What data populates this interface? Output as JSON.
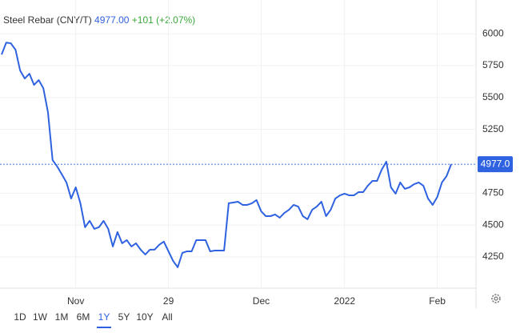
{
  "chart_data": {
    "type": "line",
    "title": "Steel Rebar (CNY/T)",
    "price": "4977.00",
    "change": "+101 (+2.07%)",
    "color": "#2f62e0",
    "price_line": {
      "value": 4977,
      "label": "4977.0"
    },
    "ylim": [
      4005,
      6265
    ],
    "yticks": [
      4250,
      4500,
      4750,
      5250,
      5500,
      5750,
      6000
    ],
    "grid": true,
    "categories": [
      null,
      null,
      null,
      null,
      null,
      null,
      null,
      null,
      null,
      null,
      null,
      null,
      null,
      null,
      null,
      null,
      "Nov",
      null,
      null,
      null,
      null,
      null,
      null,
      null,
      null,
      null,
      null,
      null,
      null,
      null,
      null,
      null,
      null,
      null,
      null,
      null,
      "29",
      null,
      null,
      null,
      null,
      null,
      null,
      null,
      null,
      null,
      null,
      null,
      null,
      null,
      null,
      null,
      null,
      null,
      null,
      null,
      "Dec",
      null,
      null,
      null,
      null,
      null,
      null,
      null,
      null,
      null,
      null,
      null,
      null,
      null,
      null,
      null,
      null,
      null,
      "2022",
      null,
      null,
      null,
      null,
      null,
      null,
      null,
      null,
      null,
      null,
      null,
      null,
      null,
      null,
      null,
      null,
      null,
      null,
      null,
      "Feb",
      null,
      null,
      null
    ],
    "values": [
      5837,
      5931,
      5925,
      5875,
      5712,
      5649,
      5687,
      5599,
      5637,
      5574,
      5386,
      5010,
      4959,
      4897,
      4834,
      4708,
      4796,
      4671,
      4483,
      4533,
      4470,
      4483,
      4533,
      4470,
      4332,
      4445,
      4357,
      4382,
      4332,
      4357,
      4307,
      4269,
      4307,
      4307,
      4345,
      4370,
      4294,
      4219,
      4169,
      4282,
      4294,
      4294,
      4382,
      4382,
      4382,
      4294,
      4300,
      4300,
      4300,
      4671,
      4677,
      4683,
      4658,
      4658,
      4671,
      4696,
      4608,
      4570,
      4570,
      4583,
      4558,
      4595,
      4620,
      4658,
      4645,
      4570,
      4545,
      4620,
      4645,
      4683,
      4570,
      4620,
      4708,
      4733,
      4746,
      4733,
      4733,
      4758,
      4758,
      4808,
      4846,
      4846,
      4934,
      4997,
      4796,
      4746,
      4834,
      4784,
      4796,
      4821,
      4834,
      4808,
      4708,
      4658,
      4721,
      4834,
      4884,
      4977
    ],
    "ranges": [
      "1D",
      "1W",
      "1M",
      "6M",
      "1Y",
      "5Y",
      "10Y",
      "All"
    ],
    "active_range": "1Y"
  }
}
